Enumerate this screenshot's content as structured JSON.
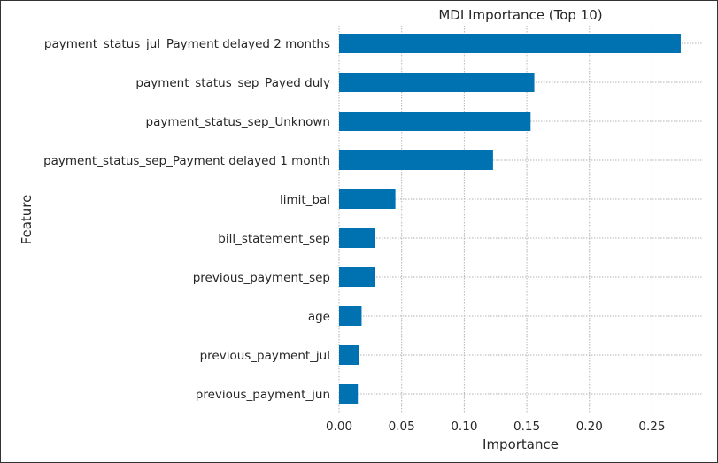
{
  "chart_data": {
    "type": "bar",
    "orientation": "horizontal",
    "title": "MDI Importance (Top 10)",
    "xlabel": "Importance",
    "ylabel": "Feature",
    "xlim": [
      0,
      0.29
    ],
    "xticks": [
      0.0,
      0.05,
      0.1,
      0.15,
      0.2,
      0.25
    ],
    "xtick_labels": [
      "0.00",
      "0.05",
      "0.10",
      "0.15",
      "0.20",
      "0.25"
    ],
    "grid": true,
    "bar_color": "#0072b2",
    "categories": [
      "payment_status_jul_Payment delayed 2 months",
      "payment_status_sep_Payed duly",
      "payment_status_sep_Unknown",
      "payment_status_sep_Payment delayed 1 month",
      "limit_bal",
      "bill_statement_sep",
      "previous_payment_sep",
      "age",
      "previous_payment_jul",
      "previous_payment_jun"
    ],
    "values": [
      0.273,
      0.156,
      0.153,
      0.123,
      0.045,
      0.029,
      0.029,
      0.018,
      0.016,
      0.015
    ]
  }
}
